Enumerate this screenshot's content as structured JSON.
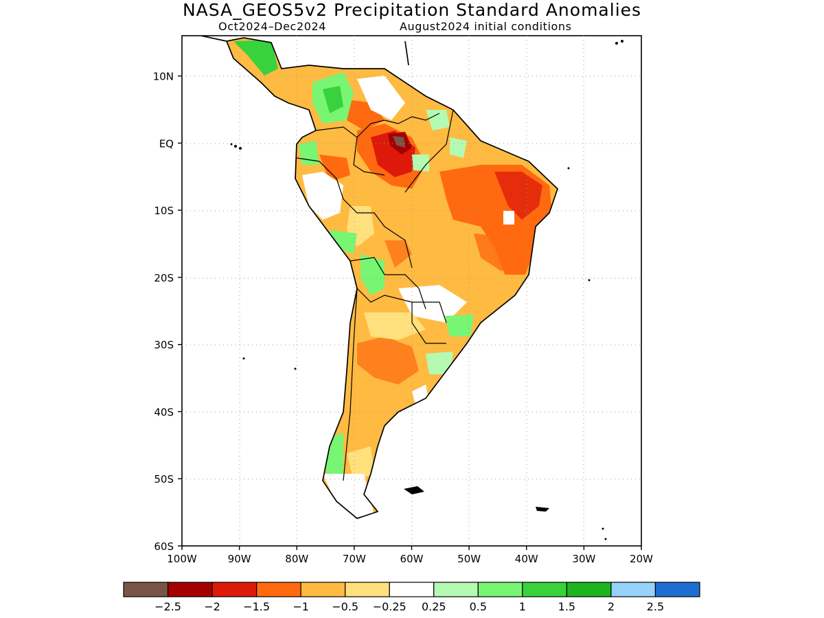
{
  "title": "NASA_GEOS5v2 Precipitation Standard Anomalies",
  "period": "Oct2024–Dec2024",
  "initial_conditions": "August2024 initial conditions",
  "map": {
    "lon_range": [
      -100,
      -20
    ],
    "lat_range": [
      -60,
      16
    ],
    "x_ticks": [
      {
        "lon": -100,
        "label": "100W"
      },
      {
        "lon": -90,
        "label": "90W"
      },
      {
        "lon": -80,
        "label": "80W"
      },
      {
        "lon": -70,
        "label": "70W"
      },
      {
        "lon": -60,
        "label": "60W"
      },
      {
        "lon": -50,
        "label": "50W"
      },
      {
        "lon": -40,
        "label": "40W"
      },
      {
        "lon": -30,
        "label": "30W"
      },
      {
        "lon": -20,
        "label": "20W"
      }
    ],
    "y_ticks": [
      {
        "lat": 10,
        "label": "10N"
      },
      {
        "lat": 0,
        "label": "EQ"
      },
      {
        "lat": -10,
        "label": "10S"
      },
      {
        "lat": -20,
        "label": "20S"
      },
      {
        "lat": -30,
        "label": "30S"
      },
      {
        "lat": -40,
        "label": "40S"
      },
      {
        "lat": -50,
        "label": "50S"
      },
      {
        "lat": -60,
        "label": "60S"
      }
    ],
    "grid": "dotted"
  },
  "colorbar": {
    "colors": [
      "#7a5547",
      "#a50000",
      "#dd1a0a",
      "#ff6a10",
      "#ffba42",
      "#ffe07c",
      "#ffffff",
      "#b4fab2",
      "#78f573",
      "#37d23c",
      "#1eb41e",
      "#96d2fa",
      "#1e6ed2"
    ],
    "labels": [
      "−2.5",
      "−2",
      "−1.5",
      "−1",
      "−0.5",
      "−0.25",
      "0.25",
      "0.5",
      "1",
      "1.5",
      "2",
      "2.5"
    ]
  }
}
